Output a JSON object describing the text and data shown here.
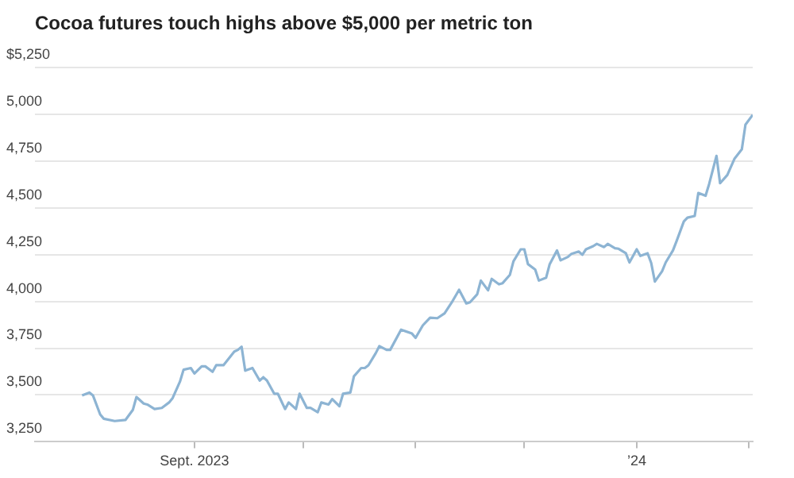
{
  "chart_data": {
    "type": "line",
    "title": "Cocoa futures touch highs above $5,000 per metric ton",
    "x": [
      "2023-08-01",
      "2023-08-03",
      "2023-08-04",
      "2023-08-06",
      "2023-08-07",
      "2023-08-10",
      "2023-08-13",
      "2023-08-15",
      "2023-08-16",
      "2023-08-18",
      "2023-08-19",
      "2023-08-21",
      "2023-08-23",
      "2023-08-25",
      "2023-08-26",
      "2023-08-28",
      "2023-08-29",
      "2023-08-31",
      "2023-09-01",
      "2023-09-03",
      "2023-09-04",
      "2023-09-06",
      "2023-09-07",
      "2023-09-09",
      "2023-09-12",
      "2023-09-13",
      "2023-09-14",
      "2023-09-15",
      "2023-09-17",
      "2023-09-19",
      "2023-09-20",
      "2023-09-21",
      "2023-09-23",
      "2023-09-24",
      "2023-09-26",
      "2023-09-27",
      "2023-09-29",
      "2023-09-30",
      "2023-10-02",
      "2023-10-03",
      "2023-10-05",
      "2023-10-06",
      "2023-10-08",
      "2023-10-09",
      "2023-10-11",
      "2023-10-12",
      "2023-10-14",
      "2023-10-15",
      "2023-10-17",
      "2023-10-18",
      "2023-10-19",
      "2023-10-21",
      "2023-10-22",
      "2023-10-24",
      "2023-10-25",
      "2023-10-28",
      "2023-10-31",
      "2023-11-01",
      "2023-11-03",
      "2023-11-05",
      "2023-11-07",
      "2023-11-09",
      "2023-11-11",
      "2023-11-13",
      "2023-11-15",
      "2023-11-16",
      "2023-11-18",
      "2023-11-19",
      "2023-11-21",
      "2023-11-22",
      "2023-11-24",
      "2023-11-25",
      "2023-11-27",
      "2023-11-28",
      "2023-11-30",
      "2023-12-01",
      "2023-12-02",
      "2023-12-04",
      "2023-12-05",
      "2023-12-07",
      "2023-12-08",
      "2023-12-10",
      "2023-12-11",
      "2023-12-13",
      "2023-12-14",
      "2023-12-16",
      "2023-12-17",
      "2023-12-18",
      "2023-12-20",
      "2023-12-21",
      "2023-12-23",
      "2023-12-24",
      "2023-12-26",
      "2023-12-27",
      "2023-12-29",
      "2023-12-30",
      "2024-01-01",
      "2024-01-02",
      "2024-01-04",
      "2024-01-05",
      "2024-01-06",
      "2024-01-08",
      "2024-01-09",
      "2024-01-11",
      "2024-01-12",
      "2024-01-14",
      "2024-01-15",
      "2024-01-17",
      "2024-01-18",
      "2024-01-20",
      "2024-01-21",
      "2024-01-23",
      "2024-01-24",
      "2024-01-26",
      "2024-01-28",
      "2024-01-30",
      "2024-01-31",
      "2024-02-02"
    ],
    "series": [
      {
        "color": "#8db4d3",
        "values": [
          3498,
          3513,
          3498,
          3396,
          3373,
          3361,
          3367,
          3420,
          3489,
          3454,
          3449,
          3425,
          3431,
          3460,
          3484,
          3571,
          3635,
          3644,
          3615,
          3653,
          3653,
          3624,
          3659,
          3659,
          3732,
          3741,
          3758,
          3630,
          3644,
          3577,
          3595,
          3577,
          3507,
          3507,
          3425,
          3460,
          3425,
          3507,
          3431,
          3431,
          3408,
          3460,
          3449,
          3478,
          3440,
          3507,
          3513,
          3600,
          3644,
          3644,
          3659,
          3723,
          3761,
          3741,
          3741,
          3849,
          3828,
          3805,
          3872,
          3913,
          3910,
          3936,
          3995,
          4062,
          3989,
          3995,
          4038,
          4111,
          4059,
          4120,
          4091,
          4097,
          4141,
          4214,
          4278,
          4278,
          4199,
          4170,
          4111,
          4126,
          4199,
          4272,
          4219,
          4237,
          4254,
          4266,
          4249,
          4278,
          4295,
          4307,
          4290,
          4307,
          4284,
          4281,
          4257,
          4208,
          4278,
          4243,
          4257,
          4205,
          4106,
          4161,
          4208,
          4272,
          4322,
          4427,
          4447,
          4456,
          4579,
          4564,
          4628,
          4777,
          4631,
          4675,
          4763,
          4812,
          4944,
          4996
        ]
      }
    ],
    "xlim": [
      "2023-07-19",
      "2024-02-02"
    ],
    "xticks": [
      {
        "value": "2023-09-01",
        "label": "Sept. 2023"
      },
      {
        "value": "2023-10-01",
        "label": null
      },
      {
        "value": "2023-11-01",
        "label": null
      },
      {
        "value": "2023-12-01",
        "label": null
      },
      {
        "value": "2024-01-01",
        "label": "’24"
      },
      {
        "value": "2024-02-01",
        "label": null
      }
    ],
    "ylim": [
      3250,
      5250
    ],
    "yticks": [
      {
        "value": 3250,
        "label": "3,250"
      },
      {
        "value": 3500,
        "label": "3,500"
      },
      {
        "value": 3750,
        "label": "3,750"
      },
      {
        "value": 4000,
        "label": "4,000"
      },
      {
        "value": 4250,
        "label": "4,250"
      },
      {
        "value": 4500,
        "label": "4,500"
      },
      {
        "value": 4750,
        "label": "4,750"
      },
      {
        "value": 5000,
        "label": "5,000"
      },
      {
        "value": 5250,
        "label": "$5,250"
      }
    ],
    "grid": "y",
    "legend": false,
    "line_style": "solid"
  }
}
